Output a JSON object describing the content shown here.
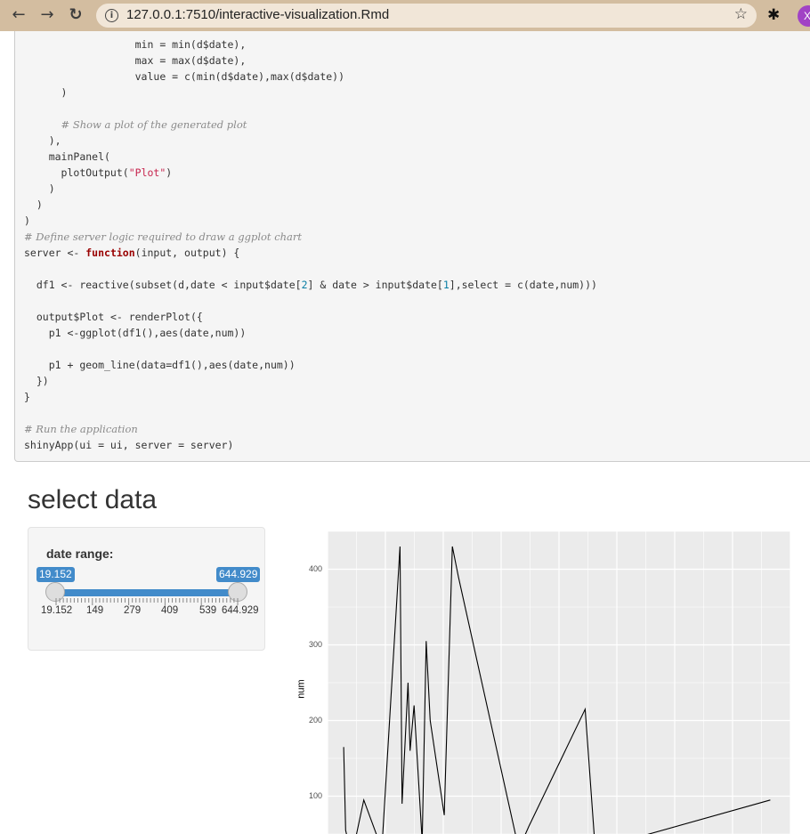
{
  "browser": {
    "url": "127.0.0.1:7510/interactive-visualization.Rmd",
    "avatar_letter": "X"
  },
  "code": {
    "lines": [
      {
        "indent": 18,
        "parts": [
          {
            "t": "min = min(d$date),"
          }
        ]
      },
      {
        "indent": 18,
        "parts": [
          {
            "t": "max = max(d$date),"
          }
        ]
      },
      {
        "indent": 18,
        "parts": [
          {
            "t": "value = c(min(d$date),max(d$date))"
          }
        ]
      },
      {
        "indent": 6,
        "parts": [
          {
            "t": ")"
          }
        ]
      },
      {
        "indent": 0,
        "parts": []
      },
      {
        "indent": 6,
        "parts": [
          {
            "t": "# Show a plot of the generated plot",
            "c": "cm"
          }
        ]
      },
      {
        "indent": 4,
        "parts": [
          {
            "t": "),"
          }
        ]
      },
      {
        "indent": 4,
        "parts": [
          {
            "t": "mainPanel("
          }
        ]
      },
      {
        "indent": 6,
        "parts": [
          {
            "t": "plotOutput("
          },
          {
            "t": "\"Plot\"",
            "c": "st"
          },
          {
            "t": ")"
          }
        ]
      },
      {
        "indent": 4,
        "parts": [
          {
            "t": ")"
          }
        ]
      },
      {
        "indent": 2,
        "parts": [
          {
            "t": ")"
          }
        ]
      },
      {
        "indent": 0,
        "parts": [
          {
            "t": ")"
          }
        ]
      },
      {
        "indent": 0,
        "parts": [
          {
            "t": "# Define server logic required to draw a ggplot chart",
            "c": "cm"
          }
        ]
      },
      {
        "indent": 0,
        "parts": [
          {
            "t": "server <- "
          },
          {
            "t": "function",
            "c": "kw"
          },
          {
            "t": "(input, output) {"
          }
        ]
      },
      {
        "indent": 0,
        "parts": []
      },
      {
        "indent": 2,
        "parts": [
          {
            "t": "df1 <- reactive(subset(d,date < input$date["
          },
          {
            "t": "2",
            "c": "nm"
          },
          {
            "t": "] & date > input$date["
          },
          {
            "t": "1",
            "c": "nm"
          },
          {
            "t": "],select = c(date,num)))"
          }
        ]
      },
      {
        "indent": 0,
        "parts": []
      },
      {
        "indent": 2,
        "parts": [
          {
            "t": "output$Plot <- renderPlot({"
          }
        ]
      },
      {
        "indent": 4,
        "parts": [
          {
            "t": "p1 <-ggplot(df1(),aes(date,num))"
          }
        ]
      },
      {
        "indent": 0,
        "parts": []
      },
      {
        "indent": 4,
        "parts": [
          {
            "t": "p1 + geom_line(data=df1(),aes(date,num))"
          }
        ]
      },
      {
        "indent": 2,
        "parts": [
          {
            "t": "})"
          }
        ]
      },
      {
        "indent": 0,
        "parts": [
          {
            "t": "}"
          }
        ]
      },
      {
        "indent": 0,
        "parts": []
      },
      {
        "indent": 0,
        "parts": [
          {
            "t": "# Run the application",
            "c": "cm"
          }
        ]
      },
      {
        "indent": 0,
        "parts": [
          {
            "t": "shinyApp(ui = ui, server = server)"
          }
        ]
      }
    ]
  },
  "app": {
    "title": "select data",
    "slider": {
      "label": "date range:",
      "min": 19.152,
      "max": 644.929,
      "from": 19.152,
      "to": 644.929,
      "from_label": "19.152",
      "to_label": "644.929",
      "tick_labels": [
        "19.152",
        "149",
        "279",
        "409",
        "539",
        "644.929"
      ]
    }
  },
  "chart_data": {
    "type": "line",
    "title": "",
    "xlabel": "",
    "ylabel": "num",
    "y_ticks": [
      100,
      200,
      300,
      400
    ],
    "ylim": [
      50,
      450
    ],
    "x": [
      38,
      39,
      42,
      48,
      57,
      66,
      67,
      70,
      71,
      73,
      77,
      79,
      81,
      88,
      92,
      95,
      125,
      130,
      158,
      163,
      250
    ],
    "values": [
      165,
      55,
      20,
      95,
      30,
      430,
      90,
      250,
      160,
      220,
      40,
      305,
      200,
      75,
      430,
      390,
      30,
      60,
      215,
      30,
      95
    ],
    "xlim": [
      30,
      260
    ],
    "grid": true
  }
}
